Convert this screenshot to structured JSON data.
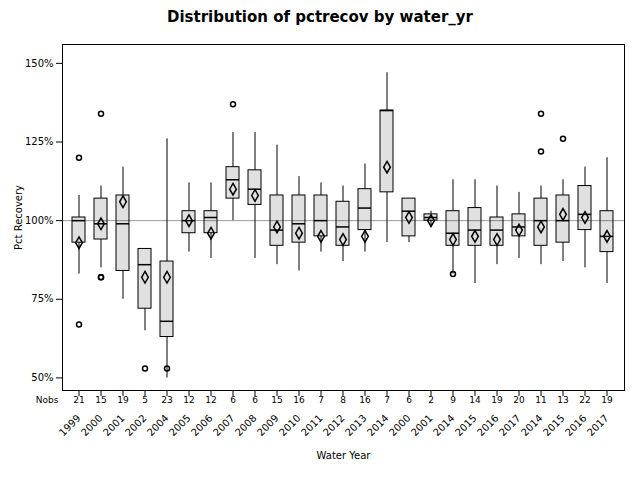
{
  "chart_data": {
    "type": "box",
    "title": "Distribution of pctrecov by water_yr",
    "xlabel": "Water Year",
    "ylabel": "Pct Recovery",
    "categories": [
      "1999",
      "2000",
      "2001",
      "2002",
      "2004",
      "2005",
      "2006",
      "2007",
      "2008",
      "2009",
      "2010",
      "2011",
      "2012",
      "2013",
      "2014",
      "2000",
      "2001",
      "2014",
      "2015",
      "2016",
      "2017",
      "2014",
      "2015",
      "2016",
      "2017"
    ],
    "nobs_label": "Nobs",
    "nobs": [
      21,
      15,
      19,
      5,
      23,
      12,
      12,
      6,
      6,
      15,
      16,
      7,
      8,
      16,
      7,
      6,
      2,
      9,
      14,
      19,
      20,
      11,
      13,
      22,
      19
    ],
    "boxes": [
      {
        "whislo": 83,
        "q1": 93,
        "med": 100,
        "q3": 101,
        "whishi": 108,
        "mean": 93,
        "fliers": [
          120,
          67
        ]
      },
      {
        "whislo": 85,
        "q1": 94,
        "med": 99,
        "q3": 107,
        "whishi": 111,
        "mean": 99,
        "fliers": [
          134,
          82,
          82
        ]
      },
      {
        "whislo": 75,
        "q1": 84,
        "med": 99,
        "q3": 108,
        "whishi": 117,
        "mean": 106,
        "fliers": []
      },
      {
        "whislo": 65,
        "q1": 72,
        "med": 86,
        "q3": 91,
        "whishi": 91,
        "mean": 82,
        "fliers": [
          53
        ]
      },
      {
        "whislo": 50,
        "q1": 63,
        "med": 68,
        "q3": 87,
        "whishi": 126,
        "mean": 82,
        "fliers": [
          53
        ]
      },
      {
        "whislo": 90,
        "q1": 96,
        "med": 100,
        "q3": 103,
        "whishi": 112,
        "mean": 100,
        "fliers": []
      },
      {
        "whislo": 88,
        "q1": 96,
        "med": 101,
        "q3": 103,
        "whishi": 112,
        "mean": 96,
        "fliers": []
      },
      {
        "whislo": 100,
        "q1": 107,
        "med": 113,
        "q3": 117,
        "whishi": 128,
        "mean": 110,
        "fliers": [
          137
        ]
      },
      {
        "whislo": 88,
        "q1": 105,
        "med": 110,
        "q3": 116,
        "whishi": 128,
        "mean": 108,
        "fliers": []
      },
      {
        "whislo": 86,
        "q1": 92,
        "med": 97,
        "q3": 108,
        "whishi": 124,
        "mean": 98,
        "fliers": []
      },
      {
        "whislo": 84,
        "q1": 93,
        "med": 99,
        "q3": 108,
        "whishi": 114,
        "mean": 96,
        "fliers": []
      },
      {
        "whislo": 90,
        "q1": 95,
        "med": 100,
        "q3": 108,
        "whishi": 112,
        "mean": 95,
        "fliers": []
      },
      {
        "whislo": 87,
        "q1": 92,
        "med": 98,
        "q3": 106,
        "whishi": 111,
        "mean": 94,
        "fliers": []
      },
      {
        "whislo": 90,
        "q1": 97,
        "med": 104,
        "q3": 110,
        "whishi": 118,
        "mean": 95,
        "fliers": []
      },
      {
        "whislo": 93,
        "q1": 109,
        "med": 135,
        "q3": 135,
        "whishi": 147,
        "mean": 117,
        "fliers": []
      },
      {
        "whislo": 93,
        "q1": 95,
        "med": 103,
        "q3": 107,
        "whishi": 107,
        "mean": 101,
        "fliers": []
      },
      {
        "whislo": 98,
        "q1": 100,
        "med": 101,
        "q3": 102,
        "whishi": 103,
        "mean": 100,
        "fliers": []
      },
      {
        "whislo": 83,
        "q1": 92,
        "med": 96,
        "q3": 103,
        "whishi": 113,
        "mean": 94,
        "fliers": [
          83
        ]
      },
      {
        "whislo": 80,
        "q1": 92,
        "med": 97,
        "q3": 104,
        "whishi": 113,
        "mean": 95,
        "fliers": []
      },
      {
        "whislo": 86,
        "q1": 92,
        "med": 97,
        "q3": 101,
        "whishi": 111,
        "mean": 94,
        "fliers": []
      },
      {
        "whislo": 88,
        "q1": 95,
        "med": 98,
        "q3": 102,
        "whishi": 109,
        "mean": 97,
        "fliers": []
      },
      {
        "whislo": 86,
        "q1": 92,
        "med": 100,
        "q3": 107,
        "whishi": 111,
        "mean": 98,
        "fliers": [
          134,
          122
        ]
      },
      {
        "whislo": 87,
        "q1": 93,
        "med": 100,
        "q3": 108,
        "whishi": 113,
        "mean": 102,
        "fliers": [
          126
        ]
      },
      {
        "whislo": 85,
        "q1": 97,
        "med": 102,
        "q3": 111,
        "whishi": 117,
        "mean": 101,
        "fliers": []
      },
      {
        "whislo": 80,
        "q1": 90,
        "med": 95,
        "q3": 103,
        "whishi": 120,
        "mean": 95,
        "fliers": []
      }
    ],
    "reference_line": 100,
    "ylim": [
      46,
      156
    ],
    "yticks": [
      {
        "value": 50,
        "label": "50%"
      },
      {
        "value": 75,
        "label": "75%"
      },
      {
        "value": 100,
        "label": "100%"
      },
      {
        "value": 125,
        "label": "125%"
      },
      {
        "value": 150,
        "label": "150%"
      }
    ],
    "grid": false
  }
}
